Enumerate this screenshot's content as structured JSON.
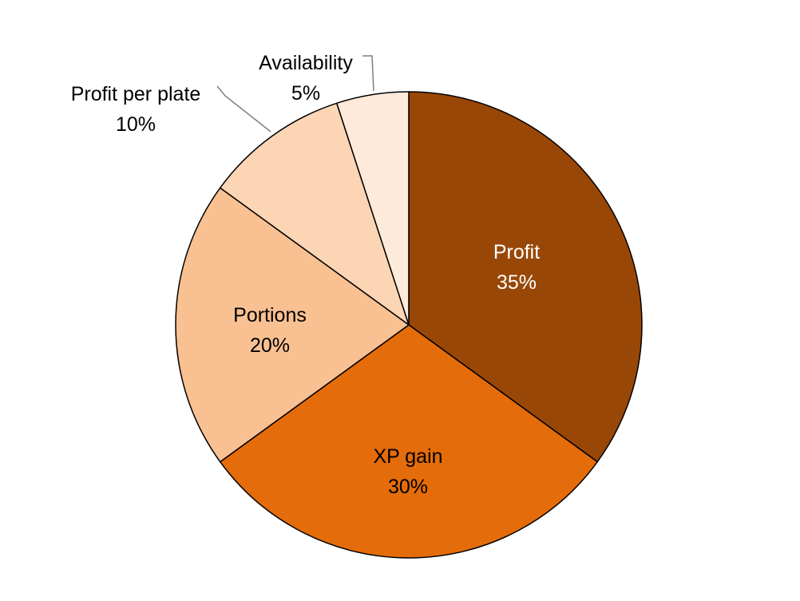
{
  "chart_data": {
    "type": "pie",
    "title": "",
    "slices": [
      {
        "label": "Profit",
        "value": 35,
        "value_label": "35%",
        "color": "#994707",
        "text_color": "#ffffff"
      },
      {
        "label": "XP gain",
        "value": 30,
        "value_label": "30%",
        "color": "#e46c0a",
        "text_color": "#000000"
      },
      {
        "label": "Portions",
        "value": 20,
        "value_label": "20%",
        "color": "#f9c092",
        "text_color": "#000000"
      },
      {
        "label": "Profit per plate",
        "value": 10,
        "value_label": "10%",
        "color": "#fcd5b5",
        "text_color": "#000000"
      },
      {
        "label": "Availability",
        "value": 5,
        "value_label": "5%",
        "color": "#fdeadb",
        "text_color": "#000000"
      }
    ],
    "start_angle": "12 o'clock",
    "direction": "clockwise",
    "slice_border_color": "#000000",
    "leader_line_color": "#7f7f7f"
  }
}
